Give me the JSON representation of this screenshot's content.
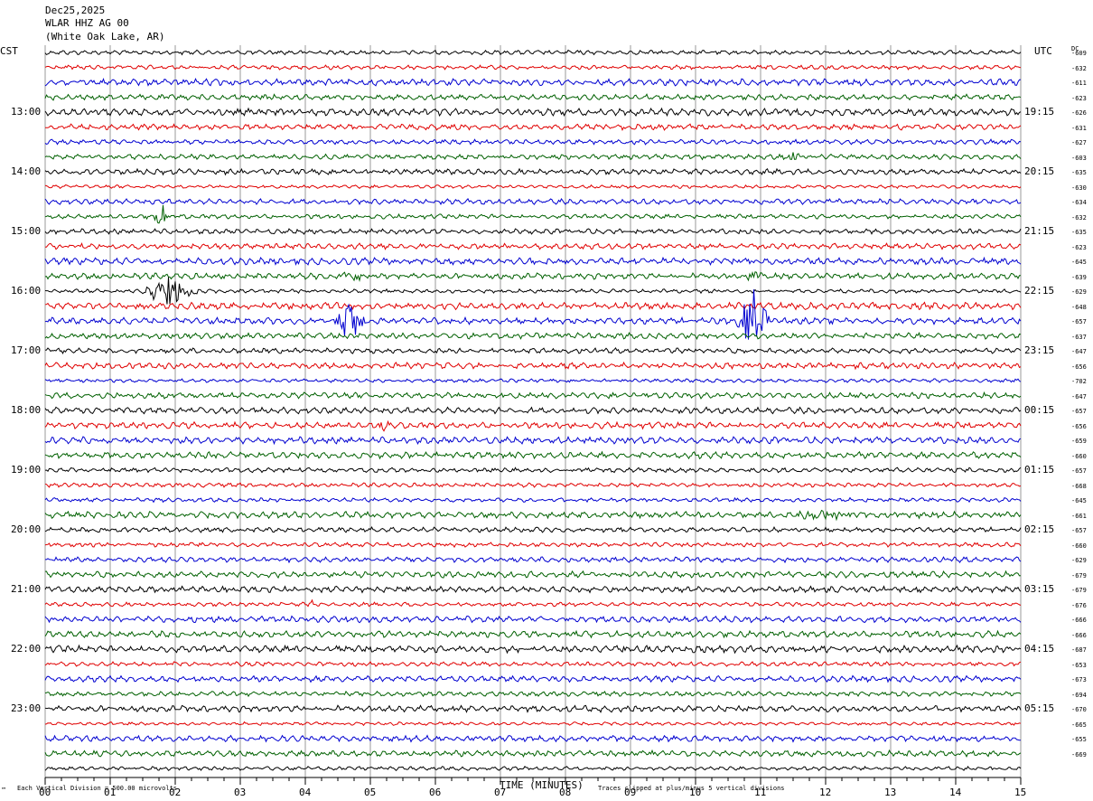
{
  "header": {
    "date": "Dec25,2025",
    "station": "WLAR HHZ AG 00",
    "location": "(White Oak Lake, AR)"
  },
  "left_label": "CST",
  "right_label": "UTC",
  "dc_label": "DC",
  "footer": {
    "scale_note": "Each Vertical Division =  500.00 microvolts",
    "clip_note": "Traces clipped at plus/minus 5 vertical divisions",
    "corner_mark": "™"
  },
  "colors": {
    "trace_cycle": [
      "#000000",
      "#e00000",
      "#0000d0",
      "#006000"
    ],
    "grid": "#9a9a9a"
  },
  "chart_data": {
    "type": "line",
    "xlabel": "TIME (MINUTES)",
    "xlim": [
      0,
      15
    ],
    "x_tick_labels": [
      "00",
      "01",
      "02",
      "03",
      "04",
      "05",
      "06",
      "07",
      "08",
      "09",
      "10",
      "11",
      "12",
      "13",
      "14",
      "15"
    ],
    "trace_count": 49,
    "traces_per_hour": 4,
    "left_time_labels": [
      {
        "trace": 4,
        "label": "13:00"
      },
      {
        "trace": 8,
        "label": "14:00"
      },
      {
        "trace": 12,
        "label": "15:00"
      },
      {
        "trace": 16,
        "label": "16:00"
      },
      {
        "trace": 20,
        "label": "17:00"
      },
      {
        "trace": 24,
        "label": "18:00"
      },
      {
        "trace": 28,
        "label": "19:00"
      },
      {
        "trace": 32,
        "label": "20:00"
      },
      {
        "trace": 36,
        "label": "21:00"
      },
      {
        "trace": 40,
        "label": "22:00"
      },
      {
        "trace": 44,
        "label": "23:00"
      }
    ],
    "right_time_labels": [
      {
        "trace": 4,
        "label": "19:15"
      },
      {
        "trace": 8,
        "label": "20:15"
      },
      {
        "trace": 12,
        "label": "21:15"
      },
      {
        "trace": 16,
        "label": "22:15"
      },
      {
        "trace": 20,
        "label": "23:15"
      },
      {
        "trace": 24,
        "label": "00:15"
      },
      {
        "trace": 28,
        "label": "01:15"
      },
      {
        "trace": 32,
        "label": "02:15"
      },
      {
        "trace": 36,
        "label": "03:15"
      },
      {
        "trace": 40,
        "label": "04:15"
      },
      {
        "trace": 44,
        "label": "05:15"
      }
    ],
    "dc_offsets": [
      "-609",
      "-632",
      "-611",
      "-623",
      "-626",
      "-631",
      "-627",
      "-603",
      "-635",
      "-630",
      "-634",
      "-632",
      "-635",
      "-623",
      "-645",
      "-639",
      "-629",
      "-648",
      "-657",
      "-637",
      "-647",
      "-656",
      "-702",
      "-647",
      "-657",
      "-656",
      "-659",
      "-660",
      "-657",
      "-668",
      "-645",
      "-661",
      "-657",
      "-660",
      "-629",
      "-679",
      "-679",
      "-676",
      "-666",
      "-666",
      "-687",
      "-653",
      "-673",
      "-694",
      "-670",
      "-665",
      "-655",
      "-669"
    ],
    "events": [
      {
        "trace": 15,
        "minute": 4.7,
        "amplitude": 0.5,
        "duration_min": 0.5
      },
      {
        "trace": 15,
        "minute": 10.9,
        "amplitude": 0.4,
        "duration_min": 0.5
      },
      {
        "trace": 16,
        "minute": 1.9,
        "amplitude": 1.0,
        "duration_min": 1.0
      },
      {
        "trace": 18,
        "minute": 4.7,
        "amplitude": 1.3,
        "duration_min": 0.6
      },
      {
        "trace": 18,
        "minute": 10.9,
        "amplitude": 2.2,
        "duration_min": 0.6
      },
      {
        "trace": 11,
        "minute": 1.8,
        "amplitude": 0.8,
        "duration_min": 0.3
      },
      {
        "trace": 7,
        "minute": 11.5,
        "amplitude": 0.3,
        "duration_min": 0.6
      },
      {
        "trace": 31,
        "minute": 11.9,
        "amplitude": 0.3,
        "duration_min": 1.2
      },
      {
        "trace": 25,
        "minute": 5.2,
        "amplitude": 0.3,
        "duration_min": 0.6
      },
      {
        "trace": 40,
        "minute": 8.9,
        "amplitude": 0.6,
        "duration_min": 0.1
      },
      {
        "trace": 37,
        "minute": 4.1,
        "amplitude": 0.4,
        "duration_min": 0.1
      }
    ]
  }
}
